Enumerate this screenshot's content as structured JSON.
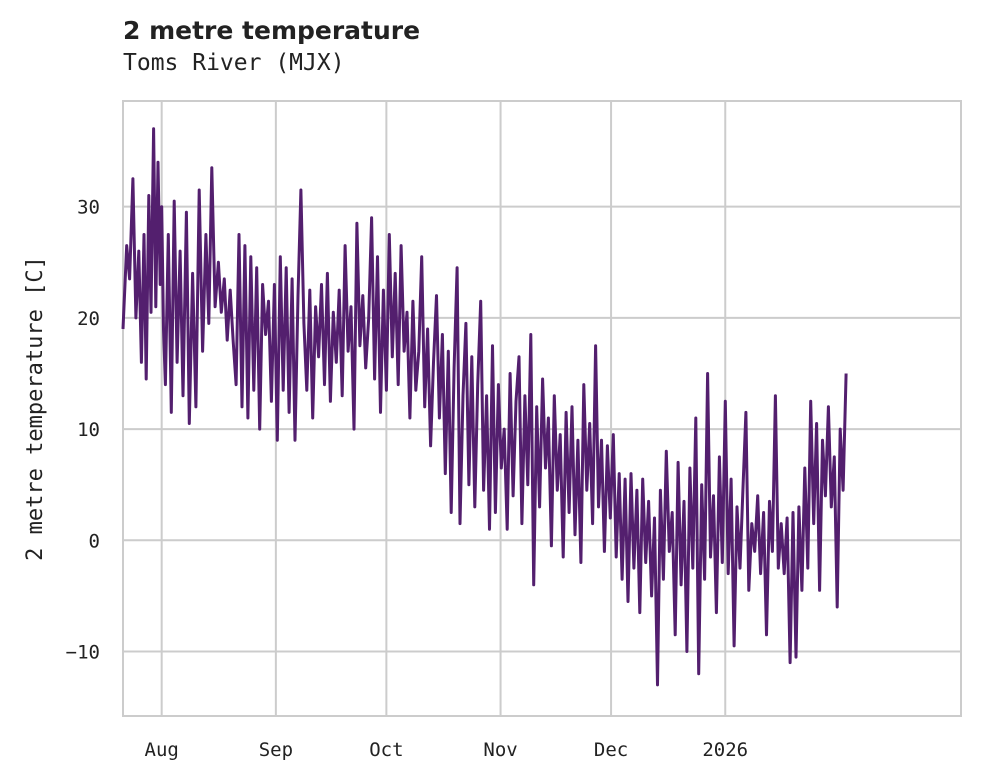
{
  "chart_data": {
    "type": "line",
    "title": "2 metre temperature",
    "subtitle": "Toms River (MJX)",
    "xlabel": "",
    "ylabel": "2 metre temperature [C]",
    "ylim": [
      -15.8,
      39.5
    ],
    "yticks": [
      -10,
      0,
      10,
      20,
      30
    ],
    "xlim_day": [
      -10.5,
      217
    ],
    "xticks": [
      {
        "label": "Aug",
        "day": 0
      },
      {
        "label": "Sep",
        "day": 31
      },
      {
        "label": "Oct",
        "day": 61
      },
      {
        "label": "Nov",
        "day": 92
      },
      {
        "label": "Dec",
        "day": 122
      },
      {
        "label": "2026",
        "day": 153
      }
    ],
    "grid": true,
    "series": [
      {
        "name": "2 metre temperature",
        "color": "#531f6e",
        "x_unit": "days since Aug 1",
        "points": [
          [
            -10.5,
            19.0
          ],
          [
            -9.5,
            26.5
          ],
          [
            -8.7,
            23.5
          ],
          [
            -7.8,
            32.5
          ],
          [
            -7.0,
            20.0
          ],
          [
            -6.2,
            26.0
          ],
          [
            -5.5,
            16.0
          ],
          [
            -4.8,
            27.5
          ],
          [
            -4.2,
            14.5
          ],
          [
            -3.5,
            31.0
          ],
          [
            -2.9,
            20.5
          ],
          [
            -2.2,
            37.0
          ],
          [
            -1.6,
            21.0
          ],
          [
            -1.0,
            34.0
          ],
          [
            -0.4,
            23.0
          ],
          [
            0.0,
            30.0
          ],
          [
            0.5,
            19.0
          ],
          [
            1.0,
            14.0
          ],
          [
            1.8,
            27.5
          ],
          [
            2.6,
            11.5
          ],
          [
            3.4,
            30.5
          ],
          [
            4.2,
            16.0
          ],
          [
            5.0,
            26.0
          ],
          [
            5.8,
            13.0
          ],
          [
            6.7,
            29.5
          ],
          [
            7.5,
            10.5
          ],
          [
            8.4,
            24.0
          ],
          [
            9.3,
            12.0
          ],
          [
            10.2,
            31.5
          ],
          [
            11.1,
            17.0
          ],
          [
            12.0,
            27.5
          ],
          [
            12.8,
            19.5
          ],
          [
            13.6,
            33.5
          ],
          [
            14.5,
            21.0
          ],
          [
            15.4,
            25.0
          ],
          [
            16.2,
            20.5
          ],
          [
            17.0,
            23.5
          ],
          [
            17.8,
            18.0
          ],
          [
            18.6,
            22.5
          ],
          [
            19.4,
            18.0
          ],
          [
            20.2,
            14.0
          ],
          [
            21.0,
            27.5
          ],
          [
            21.8,
            12.0
          ],
          [
            22.6,
            26.5
          ],
          [
            23.4,
            11.0
          ],
          [
            24.2,
            25.5
          ],
          [
            25.0,
            13.5
          ],
          [
            25.8,
            24.5
          ],
          [
            26.6,
            10.0
          ],
          [
            27.4,
            23.0
          ],
          [
            28.2,
            18.5
          ],
          [
            29.0,
            21.5
          ],
          [
            29.8,
            12.5
          ],
          [
            30.6,
            23.0
          ],
          [
            31.4,
            9.0
          ],
          [
            32.2,
            25.5
          ],
          [
            33.0,
            13.5
          ],
          [
            33.8,
            24.5
          ],
          [
            34.6,
            11.5
          ],
          [
            35.4,
            23.5
          ],
          [
            36.2,
            9.0
          ],
          [
            37.0,
            22.0
          ],
          [
            37.8,
            31.5
          ],
          [
            38.6,
            19.5
          ],
          [
            39.4,
            13.5
          ],
          [
            40.2,
            22.5
          ],
          [
            41.0,
            11.0
          ],
          [
            41.8,
            21.0
          ],
          [
            42.6,
            16.5
          ],
          [
            43.4,
            23.0
          ],
          [
            44.2,
            14.0
          ],
          [
            45.0,
            24.0
          ],
          [
            45.8,
            12.5
          ],
          [
            46.6,
            20.5
          ],
          [
            47.4,
            16.0
          ],
          [
            48.2,
            22.5
          ],
          [
            49.0,
            13.0
          ],
          [
            49.8,
            26.5
          ],
          [
            50.6,
            17.0
          ],
          [
            51.4,
            21.0
          ],
          [
            52.2,
            10.0
          ],
          [
            53.0,
            28.5
          ],
          [
            53.8,
            17.5
          ],
          [
            54.6,
            22.0
          ],
          [
            55.4,
            15.5
          ],
          [
            56.2,
            20.0
          ],
          [
            57.0,
            29.0
          ],
          [
            57.8,
            14.5
          ],
          [
            58.6,
            25.5
          ],
          [
            59.4,
            11.5
          ],
          [
            60.2,
            22.5
          ],
          [
            61.0,
            13.5
          ],
          [
            61.8,
            27.5
          ],
          [
            62.6,
            16.5
          ],
          [
            63.4,
            24.0
          ],
          [
            64.2,
            14.0
          ],
          [
            65.0,
            26.5
          ],
          [
            65.8,
            17.0
          ],
          [
            66.6,
            20.5
          ],
          [
            67.4,
            11.0
          ],
          [
            68.2,
            21.5
          ],
          [
            69.0,
            13.5
          ],
          [
            69.8,
            17.0
          ],
          [
            70.6,
            25.5
          ],
          [
            71.4,
            12.0
          ],
          [
            72.2,
            19.0
          ],
          [
            73.0,
            8.5
          ],
          [
            73.8,
            16.0
          ],
          [
            74.6,
            22.0
          ],
          [
            75.4,
            11.0
          ],
          [
            76.2,
            18.5
          ],
          [
            77.0,
            6.0
          ],
          [
            77.8,
            17.0
          ],
          [
            78.6,
            2.5
          ],
          [
            79.4,
            15.5
          ],
          [
            80.2,
            24.5
          ],
          [
            81.0,
            1.5
          ],
          [
            81.8,
            13.0
          ],
          [
            82.6,
            19.5
          ],
          [
            83.4,
            5.0
          ],
          [
            84.2,
            16.5
          ],
          [
            85.0,
            3.0
          ],
          [
            85.8,
            14.0
          ],
          [
            86.6,
            21.5
          ],
          [
            87.4,
            4.5
          ],
          [
            88.2,
            13.0
          ],
          [
            89.0,
            1.0
          ],
          [
            89.8,
            17.5
          ],
          [
            90.6,
            2.5
          ],
          [
            91.4,
            14.0
          ],
          [
            92.2,
            6.5
          ],
          [
            93.0,
            10.0
          ],
          [
            93.8,
            1.0
          ],
          [
            94.6,
            15.0
          ],
          [
            95.4,
            4.0
          ],
          [
            96.2,
            12.5
          ],
          [
            97.0,
            16.5
          ],
          [
            97.8,
            1.5
          ],
          [
            98.6,
            13.0
          ],
          [
            99.4,
            5.0
          ],
          [
            100.2,
            18.5
          ],
          [
            101.0,
            -4.0
          ],
          [
            101.8,
            12.0
          ],
          [
            102.6,
            3.0
          ],
          [
            103.4,
            14.5
          ],
          [
            104.2,
            6.5
          ],
          [
            105.0,
            11.0
          ],
          [
            105.8,
            -0.5
          ],
          [
            106.6,
            13.0
          ],
          [
            107.4,
            4.5
          ],
          [
            108.2,
            9.5
          ],
          [
            109.0,
            -1.5
          ],
          [
            109.8,
            11.5
          ],
          [
            110.6,
            2.5
          ],
          [
            111.4,
            12.0
          ],
          [
            112.2,
            0.5
          ],
          [
            113.0,
            9.0
          ],
          [
            113.8,
            -2.0
          ],
          [
            114.6,
            14.0
          ],
          [
            115.4,
            4.5
          ],
          [
            116.2,
            10.5
          ],
          [
            117.0,
            1.5
          ],
          [
            117.8,
            17.5
          ],
          [
            118.6,
            3.0
          ],
          [
            119.4,
            9.0
          ],
          [
            120.2,
            -1.0
          ],
          [
            121.0,
            8.5
          ],
          [
            121.8,
            2.0
          ],
          [
            122.6,
            9.5
          ],
          [
            123.4,
            -1.5
          ],
          [
            124.2,
            6.0
          ],
          [
            125.0,
            -3.5
          ],
          [
            125.8,
            5.5
          ],
          [
            126.6,
            -5.5
          ],
          [
            127.4,
            6.0
          ],
          [
            128.2,
            -2.5
          ],
          [
            129.0,
            4.5
          ],
          [
            129.8,
            -6.5
          ],
          [
            130.6,
            5.5
          ],
          [
            131.4,
            -2.0
          ],
          [
            132.2,
            3.5
          ],
          [
            133.0,
            -5.0
          ],
          [
            133.8,
            2.0
          ],
          [
            134.6,
            -13.0
          ],
          [
            135.4,
            4.5
          ],
          [
            136.2,
            -3.5
          ],
          [
            137.0,
            8.0
          ],
          [
            137.8,
            -1.0
          ],
          [
            138.6,
            2.5
          ],
          [
            139.4,
            -8.5
          ],
          [
            140.2,
            7.0
          ],
          [
            141.0,
            -4.0
          ],
          [
            141.8,
            3.5
          ],
          [
            142.6,
            -10.0
          ],
          [
            143.4,
            6.5
          ],
          [
            144.2,
            -2.5
          ],
          [
            145.0,
            11.0
          ],
          [
            145.8,
            -12.0
          ],
          [
            146.6,
            5.0
          ],
          [
            147.4,
            -3.5
          ],
          [
            148.2,
            15.0
          ],
          [
            149.0,
            -1.5
          ],
          [
            149.8,
            4.0
          ],
          [
            150.6,
            -6.5
          ],
          [
            151.4,
            7.5
          ],
          [
            152.2,
            -2.0
          ],
          [
            153.0,
            12.5
          ],
          [
            153.8,
            -3.0
          ],
          [
            154.6,
            5.5
          ],
          [
            155.4,
            -9.5
          ],
          [
            156.2,
            3.0
          ],
          [
            157.0,
            -2.5
          ],
          [
            157.8,
            4.5
          ],
          [
            158.6,
            11.5
          ],
          [
            159.4,
            -4.5
          ],
          [
            160.2,
            1.5
          ],
          [
            161.0,
            -1.0
          ],
          [
            161.8,
            4.0
          ],
          [
            162.6,
            -3.0
          ],
          [
            163.4,
            2.5
          ],
          [
            164.2,
            -8.5
          ],
          [
            165.0,
            3.5
          ],
          [
            165.8,
            -1.0
          ],
          [
            166.6,
            13.0
          ],
          [
            167.4,
            -2.5
          ],
          [
            168.2,
            1.5
          ],
          [
            169.0,
            -3.0
          ],
          [
            169.8,
            2.0
          ],
          [
            170.6,
            -11.0
          ],
          [
            171.4,
            2.5
          ],
          [
            172.2,
            -10.5
          ],
          [
            173.0,
            3.0
          ],
          [
            173.8,
            -4.5
          ],
          [
            174.6,
            6.5
          ],
          [
            175.4,
            -2.5
          ],
          [
            176.2,
            12.5
          ],
          [
            177.0,
            1.5
          ],
          [
            177.8,
            10.5
          ],
          [
            178.6,
            -4.5
          ],
          [
            179.4,
            9.0
          ],
          [
            180.2,
            4.0
          ],
          [
            181.0,
            12.0
          ],
          [
            181.8,
            3.0
          ],
          [
            182.6,
            7.5
          ],
          [
            183.4,
            -6.0
          ],
          [
            184.2,
            10.0
          ],
          [
            185.0,
            4.5
          ],
          [
            185.8,
            15.0
          ]
        ]
      }
    ]
  }
}
